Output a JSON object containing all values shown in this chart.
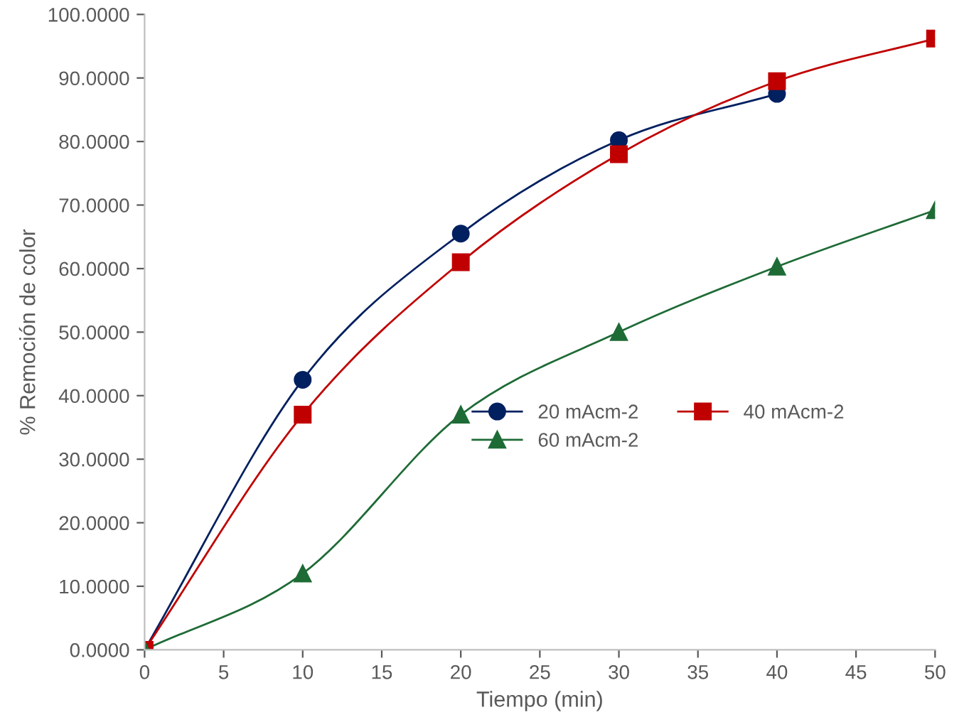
{
  "chart_data": {
    "type": "line",
    "xlabel": "Tiempo (min)",
    "ylabel": "% Remoción de color",
    "xlim": [
      0,
      50
    ],
    "xticks": [
      0,
      5,
      10,
      15,
      20,
      25,
      30,
      35,
      40,
      45,
      50
    ],
    "ylim": [
      0,
      100
    ],
    "yticks": [
      {
        "value": 0,
        "label": "0.0000"
      },
      {
        "value": 10,
        "label": "10.0000"
      },
      {
        "value": 20,
        "label": "20.0000"
      },
      {
        "value": 30,
        "label": "30.0000"
      },
      {
        "value": 40,
        "label": "40.0000"
      },
      {
        "value": 50,
        "label": "50.0000"
      },
      {
        "value": 60,
        "label": "60.0000"
      },
      {
        "value": 70,
        "label": "70.0000"
      },
      {
        "value": 80,
        "label": "80.0000"
      },
      {
        "value": 90,
        "label": "90.0000"
      },
      {
        "value": 100,
        "label": "100.0000"
      }
    ],
    "grid": false,
    "legend": "center",
    "line_style": "solid",
    "series": [
      {
        "name": "20 mAcm-2",
        "color": "#002060",
        "marker": "circle",
        "x": [
          0,
          10,
          20,
          30,
          40
        ],
        "values": [
          0,
          42.5,
          65.5,
          80.2,
          87.5
        ]
      },
      {
        "name": "40 mAcm-2",
        "color": "#c00000",
        "marker": "square",
        "x": [
          0,
          10,
          20,
          30,
          40,
          50
        ],
        "values": [
          0,
          37,
          61,
          78,
          89.5,
          96.2
        ]
      },
      {
        "name": "60 mAcm-2",
        "color": "#1e6b36",
        "marker": "triangle",
        "x": [
          0,
          10,
          20,
          30,
          40,
          50
        ],
        "values": [
          0,
          12,
          37,
          50,
          60.3,
          69.2
        ]
      }
    ]
  }
}
